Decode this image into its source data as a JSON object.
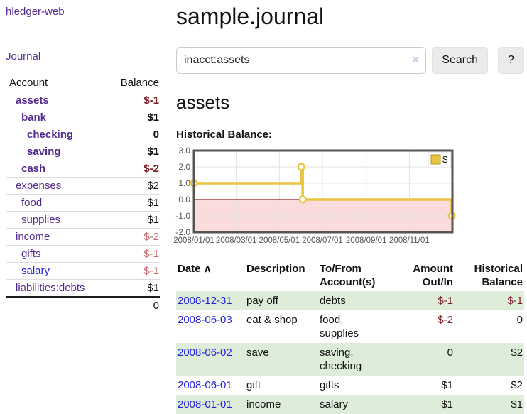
{
  "brand": "hledger-web",
  "nav": {
    "journal_label": "Journal"
  },
  "sidebar_accounts": {
    "headers": {
      "account": "Account",
      "balance": "Balance"
    },
    "rows": [
      {
        "name": "assets",
        "indent": 0,
        "bold": true,
        "link_color": "purple",
        "balance": "$-1",
        "balance_class": "neg-strong"
      },
      {
        "name": "bank",
        "indent": 1,
        "bold": true,
        "link_color": "purple",
        "balance": "$1",
        "balance_class": "pos"
      },
      {
        "name": "checking",
        "indent": 2,
        "bold": true,
        "link_color": "purple",
        "balance": "0",
        "balance_class": "pos"
      },
      {
        "name": "saving",
        "indent": 2,
        "bold": true,
        "link_color": "purple",
        "balance": "$1",
        "balance_class": "pos"
      },
      {
        "name": "cash",
        "indent": 1,
        "bold": true,
        "link_color": "purple",
        "balance": "$-2",
        "balance_class": "neg-strong"
      },
      {
        "name": "expenses",
        "indent": 0,
        "bold": false,
        "link_color": "purple",
        "balance": "$2",
        "balance_class": "pos"
      },
      {
        "name": "food",
        "indent": 1,
        "bold": false,
        "link_color": "purple",
        "balance": "$1",
        "balance_class": "pos"
      },
      {
        "name": "supplies",
        "indent": 1,
        "bold": false,
        "link_color": "purple",
        "balance": "$1",
        "balance_class": "pos"
      },
      {
        "name": "income",
        "indent": 0,
        "bold": false,
        "link_color": "purple",
        "balance": "$-2",
        "balance_class": "neg-soft"
      },
      {
        "name": "gifts",
        "indent": 1,
        "bold": false,
        "link_color": "purple",
        "balance": "$-1",
        "balance_class": "neg-soft"
      },
      {
        "name": "salary",
        "indent": 1,
        "bold": false,
        "link_color": "blue",
        "balance": "$-1",
        "balance_class": "neg-soft"
      },
      {
        "name": "liabilities:debts",
        "indent": 0,
        "bold": false,
        "link_color": "purple",
        "balance": "$1",
        "balance_class": "pos"
      }
    ],
    "total": "0"
  },
  "header": {
    "title": "sample.journal"
  },
  "search": {
    "value": "inacct:assets",
    "clear_icon": "×",
    "search_button_label": "Search",
    "help_button_label": "?"
  },
  "account_page": {
    "title": "assets",
    "chart_heading": "Historical Balance:"
  },
  "chart_data": {
    "type": "line",
    "step": true,
    "title": "Historical Balance:",
    "series": [
      {
        "name": "$",
        "color": "#e9c440",
        "points": [
          {
            "date": "2008-01-01",
            "x": 0,
            "y": 1
          },
          {
            "date": "2008-06-01",
            "x": 152,
            "y": 2
          },
          {
            "date": "2008-06-03",
            "x": 154,
            "y": 0
          },
          {
            "date": "2008-12-31",
            "x": 365,
            "y": -1
          }
        ]
      }
    ],
    "xlim": [
      0,
      366
    ],
    "ylim": [
      -2,
      3
    ],
    "xticks": [
      {
        "x": 0,
        "label": "2008/01/01"
      },
      {
        "x": 60,
        "label": "2008/03/01"
      },
      {
        "x": 121,
        "label": "2008/05/01"
      },
      {
        "x": 182,
        "label": "2008/07/01"
      },
      {
        "x": 244,
        "label": "2008/09/01"
      },
      {
        "x": 305,
        "label": "2008/11/01"
      }
    ],
    "yticks": [
      {
        "y": 3,
        "label": "3.0"
      },
      {
        "y": 2,
        "label": "2.0"
      },
      {
        "y": 1,
        "label": "1.0"
      },
      {
        "y": 0,
        "label": "0.0"
      },
      {
        "y": -1,
        "label": "-1.0"
      },
      {
        "y": -2,
        "label": "-2.0"
      }
    ],
    "legend": {
      "label": "$",
      "position": "top-right"
    },
    "grid": true,
    "negative_region_fill": "#fbdcdc",
    "zero_line_color": "#8b1a1a",
    "border_color": "#555555",
    "tick_color": "#545454"
  },
  "register_table": {
    "headers": {
      "date": "Date",
      "sort_indicator": "∧",
      "description": "Description",
      "accounts": "To/From Account(s)",
      "amount": "Amount Out/In",
      "balance": "Historical Balance"
    },
    "rows": [
      {
        "date": "2008-12-31",
        "description": "pay off",
        "accounts": "debts",
        "amount": "$-1",
        "amount_neg": true,
        "balance": "$-1",
        "balance_neg": true
      },
      {
        "date": "2008-06-03",
        "description": "eat & shop",
        "accounts": "food, supplies",
        "amount": "$-2",
        "amount_neg": true,
        "balance": "0",
        "balance_neg": false
      },
      {
        "date": "2008-06-02",
        "description": "save",
        "accounts": "saving, checking",
        "amount": "0",
        "amount_neg": false,
        "balance": "$2",
        "balance_neg": false
      },
      {
        "date": "2008-06-01",
        "description": "gift",
        "accounts": "gifts",
        "amount": "$1",
        "amount_neg": false,
        "balance": "$2",
        "balance_neg": false
      },
      {
        "date": "2008-01-01",
        "description": "income",
        "accounts": "salary",
        "amount": "$1",
        "amount_neg": false,
        "balance": "$1",
        "balance_neg": false
      }
    ]
  },
  "colors": {
    "purple": "#552a8f",
    "blue": "#2222dd",
    "neg_strong": "#7f2028",
    "neg_soft": "#c4666c",
    "green_row": "#ddedd9",
    "series_gold": "#e9c440"
  }
}
